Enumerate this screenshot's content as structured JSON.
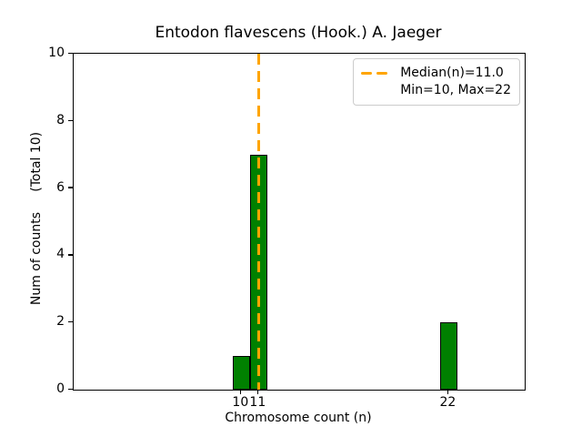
{
  "chart_data": {
    "type": "bar",
    "title": "Entodon flavescens (Hook.) A. Jaeger",
    "xlabel": "Chromosome count (n)",
    "ylabel": "Num of counts     (Total 10)",
    "x": [
      10,
      11,
      22
    ],
    "counts": [
      1,
      7,
      2
    ],
    "total_counts": 10,
    "bar_width_units": 1.0,
    "median": 11.0,
    "min": 10,
    "max": 22,
    "xlim": [
      0.3,
      26.4
    ],
    "ylim": [
      0,
      10
    ],
    "xticks": [
      10,
      11,
      22
    ],
    "yticks": [
      0,
      2,
      4,
      6,
      8,
      10
    ],
    "grid": false,
    "legend": {
      "position": "upper right",
      "entries": [
        {
          "label": "Median(n)=11.0",
          "sample": "dashed-line"
        },
        {
          "label": "Min=10, Max=22",
          "sample": "none"
        }
      ]
    },
    "colors": {
      "bar_fill": "#008000",
      "bar_edge": "#000000",
      "median_line": "#FFA500",
      "axes": "#000000",
      "background": "#FFFFFF",
      "legend_border": "#CCCCCC"
    }
  }
}
